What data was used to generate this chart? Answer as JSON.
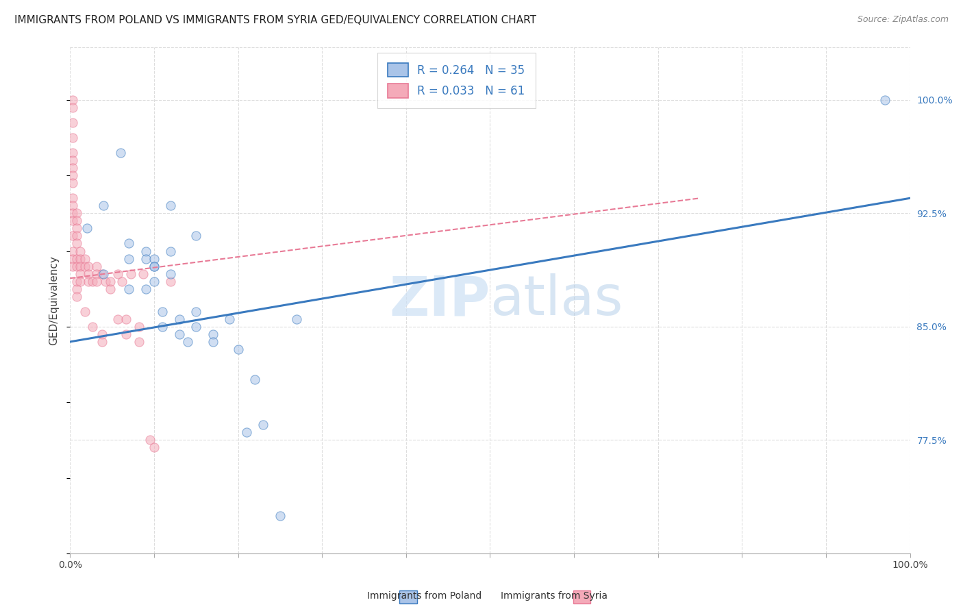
{
  "title": "IMMIGRANTS FROM POLAND VS IMMIGRANTS FROM SYRIA GED/EQUIVALENCY CORRELATION CHART",
  "source": "Source: ZipAtlas.com",
  "ylabel": "GED/Equivalency",
  "yticks": [
    77.5,
    85.0,
    92.5,
    100.0
  ],
  "ytick_labels": [
    "77.5%",
    "85.0%",
    "92.5%",
    "100.0%"
  ],
  "xlim": [
    0.0,
    1.0
  ],
  "ylim": [
    70.0,
    103.5
  ],
  "legend_r1": "R = 0.264",
  "legend_n1": "N = 35",
  "legend_r2": "R = 0.033",
  "legend_n2": "N = 61",
  "poland_color": "#aac4e8",
  "syria_color": "#f4aab9",
  "poland_line_color": "#3a7abf",
  "syria_line_color": "#e87a96",
  "poland_scatter_x": [
    0.02,
    0.04,
    0.04,
    0.06,
    0.07,
    0.07,
    0.07,
    0.09,
    0.09,
    0.09,
    0.1,
    0.1,
    0.1,
    0.1,
    0.11,
    0.11,
    0.12,
    0.12,
    0.12,
    0.13,
    0.13,
    0.14,
    0.15,
    0.15,
    0.15,
    0.17,
    0.17,
    0.19,
    0.2,
    0.21,
    0.22,
    0.23,
    0.25,
    0.27,
    0.97
  ],
  "poland_scatter_y": [
    91.5,
    93.0,
    88.5,
    96.5,
    90.5,
    89.5,
    87.5,
    90.0,
    89.5,
    87.5,
    89.5,
    89.0,
    89.0,
    88.0,
    86.0,
    85.0,
    93.0,
    90.0,
    88.5,
    85.5,
    84.5,
    84.0,
    91.0,
    86.0,
    85.0,
    84.5,
    84.0,
    85.5,
    83.5,
    78.0,
    81.5,
    78.5,
    72.5,
    85.5,
    100.0
  ],
  "syria_scatter_x": [
    0.003,
    0.003,
    0.003,
    0.003,
    0.003,
    0.003,
    0.003,
    0.003,
    0.003,
    0.003,
    0.003,
    0.003,
    0.003,
    0.003,
    0.003,
    0.003,
    0.003,
    0.008,
    0.008,
    0.008,
    0.008,
    0.008,
    0.008,
    0.008,
    0.008,
    0.008,
    0.008,
    0.012,
    0.012,
    0.012,
    0.012,
    0.012,
    0.018,
    0.018,
    0.018,
    0.022,
    0.022,
    0.022,
    0.027,
    0.027,
    0.032,
    0.032,
    0.032,
    0.038,
    0.038,
    0.038,
    0.042,
    0.048,
    0.048,
    0.057,
    0.057,
    0.062,
    0.067,
    0.067,
    0.072,
    0.082,
    0.082,
    0.087,
    0.095,
    0.1,
    0.12
  ],
  "syria_scatter_y": [
    100.0,
    99.5,
    98.5,
    97.5,
    96.5,
    96.0,
    95.5,
    95.0,
    94.5,
    93.5,
    93.0,
    92.5,
    92.0,
    91.0,
    90.0,
    89.5,
    89.0,
    92.5,
    92.0,
    91.5,
    91.0,
    90.5,
    89.5,
    89.0,
    88.0,
    87.5,
    87.0,
    90.0,
    89.5,
    89.0,
    88.5,
    88.0,
    89.5,
    89.0,
    86.0,
    89.0,
    88.5,
    88.0,
    88.0,
    85.0,
    89.0,
    88.5,
    88.0,
    88.5,
    84.5,
    84.0,
    88.0,
    88.0,
    87.5,
    88.5,
    85.5,
    88.0,
    85.5,
    84.5,
    88.5,
    85.0,
    84.0,
    88.5,
    77.5,
    77.0,
    88.0
  ],
  "poland_line_x": [
    0.0,
    1.0
  ],
  "poland_line_y": [
    84.0,
    93.5
  ],
  "syria_line_x": [
    0.0,
    0.75
  ],
  "syria_line_y": [
    88.2,
    93.5
  ],
  "background_color": "#ffffff",
  "grid_color": "#dddddd",
  "title_fontsize": 11,
  "axis_label_fontsize": 11,
  "tick_fontsize": 10,
  "legend_fontsize": 12,
  "marker_size": 90,
  "marker_alpha": 0.55
}
